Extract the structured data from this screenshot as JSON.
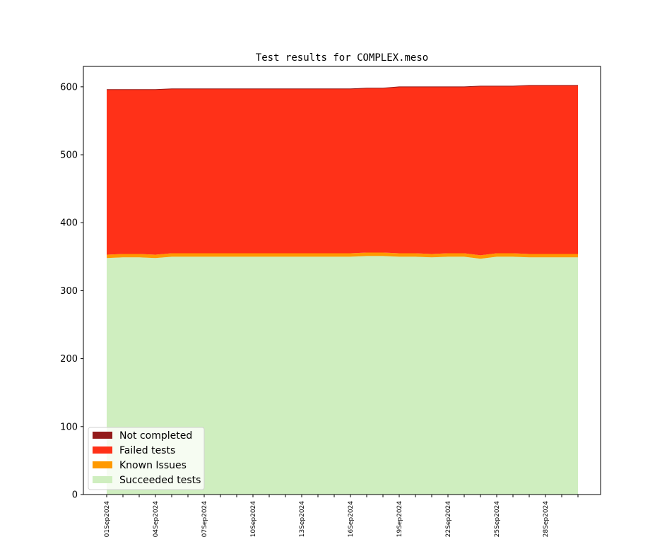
{
  "chart_data": {
    "type": "area",
    "stacked": true,
    "title": "Test results for COMPLEX.meso",
    "xlabel": "",
    "ylabel": "",
    "ylim": [
      0,
      630
    ],
    "yticks": [
      0,
      100,
      200,
      300,
      400,
      500,
      600
    ],
    "x": [
      "01Sep2024",
      "02Sep2024",
      "03Sep2024",
      "04Sep2024",
      "05Sep2024",
      "06Sep2024",
      "07Sep2024",
      "08Sep2024",
      "09Sep2024",
      "10Sep2024",
      "11Sep2024",
      "12Sep2024",
      "13Sep2024",
      "14Sep2024",
      "15Sep2024",
      "16Sep2024",
      "17Sep2024",
      "18Sep2024",
      "19Sep2024",
      "20Sep2024",
      "21Sep2024",
      "22Sep2024",
      "23Sep2024",
      "24Sep2024",
      "25Sep2024",
      "26Sep2024",
      "27Sep2024",
      "28Sep2024",
      "29Sep2024",
      "30Sep2024"
    ],
    "xtick_labels": [
      "01Sep2024",
      "04Sep2024",
      "07Sep2024",
      "10Sep2024",
      "13Sep2024",
      "16Sep2024",
      "19Sep2024",
      "22Sep2024",
      "25Sep2024",
      "28Sep2024"
    ],
    "legend_position": "lower-left",
    "grid": false,
    "series": [
      {
        "name": "Succeeded tests",
        "color": "#cfeebf",
        "values": [
          348,
          349,
          349,
          348,
          350,
          350,
          350,
          350,
          350,
          350,
          350,
          350,
          350,
          350,
          350,
          350,
          351,
          351,
          350,
          350,
          349,
          350,
          350,
          347,
          350,
          350,
          349,
          349,
          349,
          349
        ]
      },
      {
        "name": "Known Issues",
        "color": "#ff9900",
        "values": [
          5,
          5,
          5,
          5,
          5,
          5,
          5,
          5,
          5,
          5,
          5,
          5,
          5,
          5,
          5,
          5,
          5,
          5,
          5,
          5,
          5,
          5,
          5,
          5,
          5,
          5,
          5,
          5,
          5,
          5
        ]
      },
      {
        "name": "Failed tests",
        "color": "#ff3118",
        "values": [
          243,
          242,
          242,
          243,
          242,
          242,
          242,
          242,
          242,
          242,
          242,
          242,
          242,
          242,
          242,
          242,
          242,
          242,
          245,
          245,
          246,
          245,
          245,
          249,
          246,
          246,
          248,
          248,
          248,
          248
        ]
      },
      {
        "name": "Not completed",
        "color": "#931a1a",
        "values": [
          0,
          0,
          0,
          0,
          0,
          0,
          0,
          0,
          0,
          0,
          0,
          0,
          0,
          0,
          0,
          0,
          0,
          0,
          0,
          0,
          0,
          0,
          0,
          0,
          0,
          0,
          0,
          0,
          0,
          0
        ]
      }
    ],
    "legend_order": [
      "Not completed",
      "Failed tests",
      "Known Issues",
      "Succeeded tests"
    ]
  }
}
